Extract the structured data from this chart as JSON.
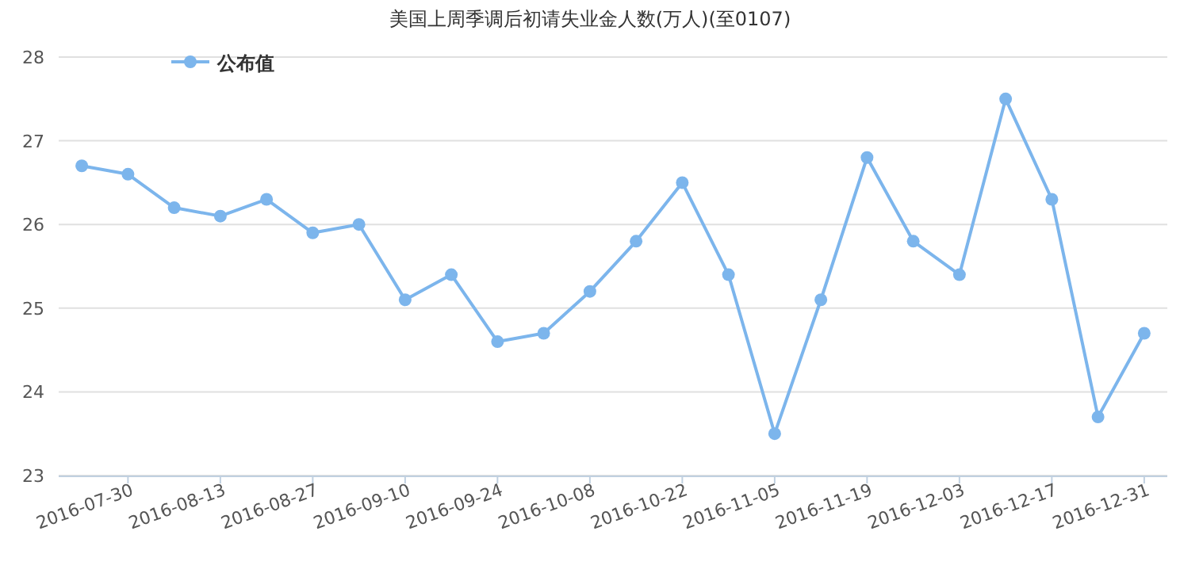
{
  "chart_data": {
    "type": "line",
    "title": "美国上周季调后初请失业金人数(万人)(至0107)",
    "categories": [
      null,
      "2016-07-30",
      null,
      "2016-08-13",
      null,
      "2016-08-27",
      null,
      "2016-09-10",
      null,
      "2016-09-24",
      null,
      "2016-10-08",
      null,
      "2016-10-22",
      null,
      "2016-11-05",
      null,
      "2016-11-19",
      null,
      "2016-12-03",
      null,
      "2016-12-17",
      null,
      "2016-12-31"
    ],
    "series": [
      {
        "name": "公布值",
        "color": "#7cb5ec",
        "values": [
          26.7,
          26.6,
          26.2,
          26.1,
          26.3,
          25.9,
          26.0,
          25.1,
          25.4,
          24.6,
          24.7,
          25.2,
          25.8,
          26.5,
          25.4,
          23.5,
          25.1,
          26.8,
          25.8,
          25.4,
          27.5,
          26.3,
          23.7,
          24.7
        ]
      }
    ],
    "ylim": [
      23,
      28
    ],
    "yticks": [
      23,
      24,
      25,
      26,
      27,
      28
    ],
    "grid": "y",
    "legend": "top left",
    "marker": "circle",
    "line_style": "solid"
  }
}
